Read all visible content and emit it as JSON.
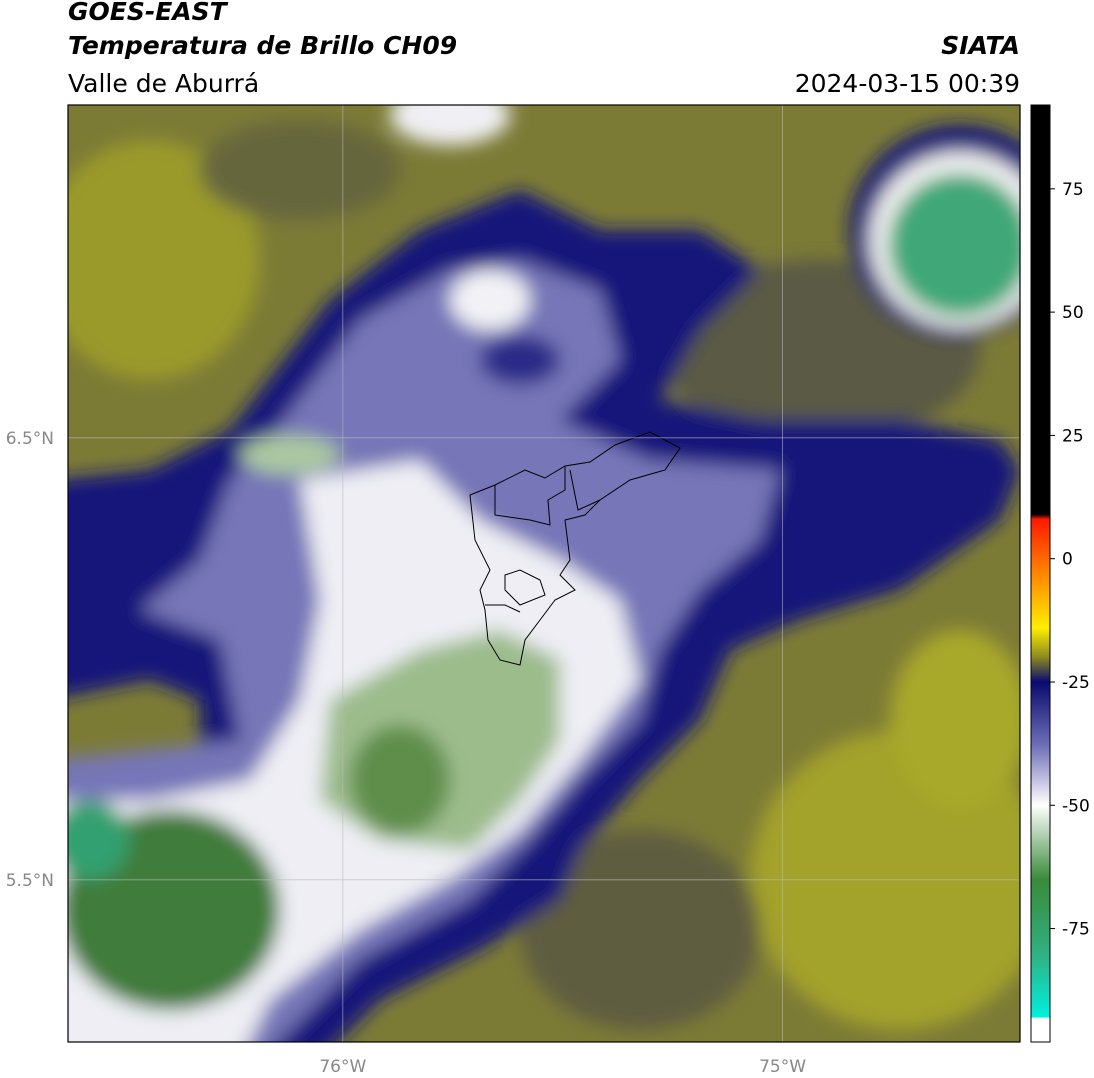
{
  "header": {
    "satellite": "GOES-EAST",
    "product": "Temperatura de Brillo CH09",
    "region": "Valle de Aburrá",
    "institution": "SIATA",
    "datetime": "2024-03-15 00:39"
  },
  "map": {
    "xlim": [
      -76.625,
      -74.46
    ],
    "ylim": [
      5.133,
      7.253
    ],
    "xticks": [
      {
        "value": -76,
        "label": "76°W"
      },
      {
        "value": -75,
        "label": "75°W"
      }
    ],
    "yticks": [
      {
        "value": 6.5,
        "label": "6.5°N"
      },
      {
        "value": 5.5,
        "label": "5.5°N"
      }
    ],
    "grid": true
  },
  "colorbar": {
    "lim": [
      -98,
      92
    ],
    "ticks": [
      75,
      50,
      25,
      0,
      -25,
      -50,
      -75
    ],
    "colormap": [
      {
        "value": 92,
        "color": "#000000"
      },
      {
        "value": 9,
        "color": "#000000"
      },
      {
        "value": 8,
        "color": "#ff1a00"
      },
      {
        "value": -5,
        "color": "#ff9900"
      },
      {
        "value": -14,
        "color": "#ffee00"
      },
      {
        "value": -20,
        "color": "#8a8a20"
      },
      {
        "value": -25,
        "color": "#0a0a70"
      },
      {
        "value": -38,
        "color": "#7070b8"
      },
      {
        "value": -50,
        "color": "#ffffff"
      },
      {
        "value": -65,
        "color": "#3a8a3a"
      },
      {
        "value": -80,
        "color": "#30b080"
      },
      {
        "value": -93,
        "color": "#00f0e0"
      },
      {
        "value": -93.1,
        "color": "#ffffff"
      },
      {
        "value": -98,
        "color": "#ffffff"
      }
    ]
  }
}
